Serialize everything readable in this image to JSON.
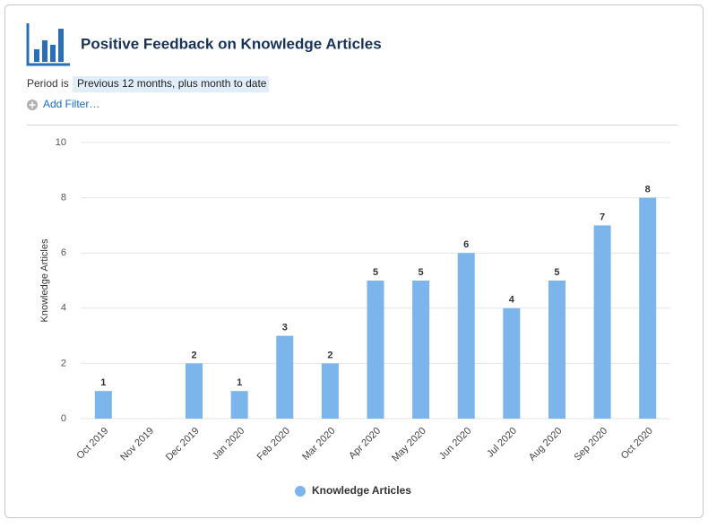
{
  "chart_data": {
    "type": "bar",
    "title": "Positive Feedback on Knowledge Articles",
    "filter_label": "Period is",
    "filter_value": "Previous 12 months, plus month to date",
    "add_filter": "Add Filter…",
    "y_label": "Knowledge Articles",
    "categories": [
      "Oct 2019",
      "Nov 2019",
      "Dec 2019",
      "Jan 2020",
      "Feb 2020",
      "Mar 2020",
      "Apr 2020",
      "May 2020",
      "Jun 2020",
      "Jul 2020",
      "Aug 2020",
      "Sep 2020",
      "Oct 2020"
    ],
    "series": [
      {
        "name": "Knowledge Articles",
        "color": "#7cb5ec",
        "values": [
          1,
          null,
          2,
          1,
          3,
          2,
          5,
          5,
          6,
          4,
          5,
          7,
          8
        ]
      }
    ],
    "ylim": [
      0,
      10
    ],
    "yticks": [
      0,
      2,
      4,
      6,
      8,
      10
    ],
    "grid": true
  }
}
